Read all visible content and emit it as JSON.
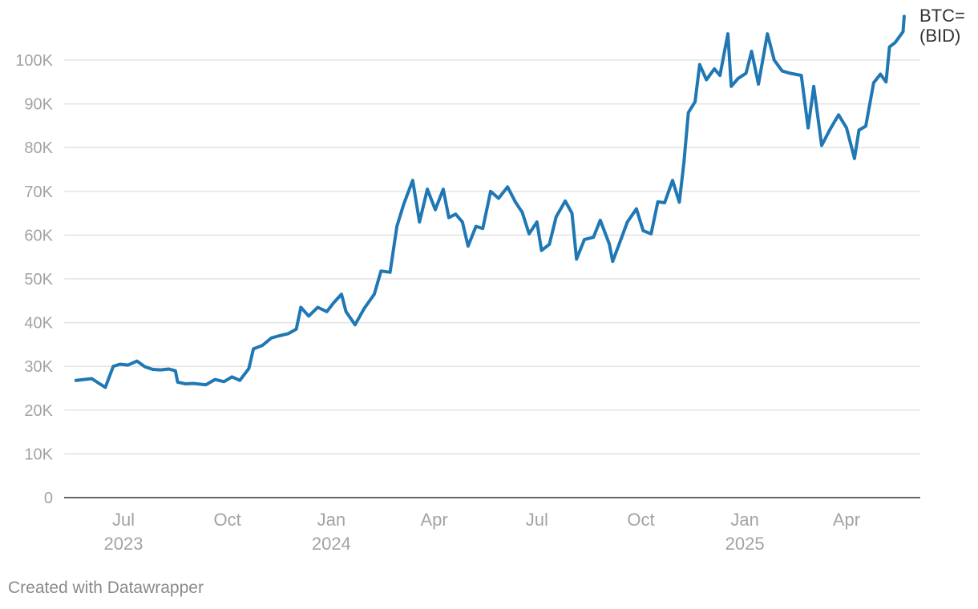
{
  "credit": "Created with Datawrapper",
  "colors": {
    "line": "#1f77b4",
    "grid": "#e3e3e3",
    "axis": "#333333",
    "tick_text": "#a3a3a3"
  },
  "chart_data": {
    "type": "line",
    "title": "",
    "xlabel": "",
    "ylabel": "",
    "ylim": [
      0,
      110000
    ],
    "xlim": [
      "2023-05-15",
      "2025-06-03"
    ],
    "grid": true,
    "yticks": [
      {
        "value": 0,
        "label": "0"
      },
      {
        "value": 10000,
        "label": "10K"
      },
      {
        "value": 20000,
        "label": "20K"
      },
      {
        "value": 30000,
        "label": "30K"
      },
      {
        "value": 40000,
        "label": "40K"
      },
      {
        "value": 50000,
        "label": "50K"
      },
      {
        "value": 60000,
        "label": "60K"
      },
      {
        "value": 70000,
        "label": "70K"
      },
      {
        "value": 80000,
        "label": "80K"
      },
      {
        "value": 90000,
        "label": "90K"
      },
      {
        "value": 100000,
        "label": "100K"
      }
    ],
    "xticks": [
      {
        "date": "2023-07-01",
        "label": "Jul",
        "year": "2023"
      },
      {
        "date": "2023-10-01",
        "label": "Oct",
        "year": ""
      },
      {
        "date": "2024-01-01",
        "label": "Jan",
        "year": "2024"
      },
      {
        "date": "2024-04-01",
        "label": "Apr",
        "year": ""
      },
      {
        "date": "2024-07-01",
        "label": "Jul",
        "year": ""
      },
      {
        "date": "2024-10-01",
        "label": "Oct",
        "year": ""
      },
      {
        "date": "2025-01-01",
        "label": "Jan",
        "year": "2025"
      },
      {
        "date": "2025-04-01",
        "label": "Apr",
        "year": ""
      }
    ],
    "series": [
      {
        "name_lines": [
          "BTC=",
          "(BID)"
        ],
        "points": [
          [
            "2023-05-20",
            26800
          ],
          [
            "2023-05-27",
            27000
          ],
          [
            "2023-06-03",
            27200
          ],
          [
            "2023-06-10",
            26000
          ],
          [
            "2023-06-15",
            25200
          ],
          [
            "2023-06-22",
            30000
          ],
          [
            "2023-06-28",
            30500
          ],
          [
            "2023-07-05",
            30300
          ],
          [
            "2023-07-13",
            31200
          ],
          [
            "2023-07-20",
            29900
          ],
          [
            "2023-07-27",
            29300
          ],
          [
            "2023-08-03",
            29200
          ],
          [
            "2023-08-10",
            29400
          ],
          [
            "2023-08-16",
            29000
          ],
          [
            "2023-08-18",
            26400
          ],
          [
            "2023-08-25",
            26000
          ],
          [
            "2023-09-01",
            26100
          ],
          [
            "2023-09-08",
            25900
          ],
          [
            "2023-09-12",
            25800
          ],
          [
            "2023-09-20",
            27000
          ],
          [
            "2023-09-28",
            26500
          ],
          [
            "2023-10-05",
            27600
          ],
          [
            "2023-10-12",
            26800
          ],
          [
            "2023-10-20",
            29500
          ],
          [
            "2023-10-24",
            34000
          ],
          [
            "2023-11-01",
            34800
          ],
          [
            "2023-11-09",
            36500
          ],
          [
            "2023-11-16",
            37000
          ],
          [
            "2023-11-24",
            37500
          ],
          [
            "2023-12-01",
            38500
          ],
          [
            "2023-12-05",
            43500
          ],
          [
            "2023-12-12",
            41500
          ],
          [
            "2023-12-20",
            43500
          ],
          [
            "2023-12-28",
            42500
          ],
          [
            "2024-01-03",
            44500
          ],
          [
            "2024-01-10",
            46500
          ],
          [
            "2024-01-14",
            42500
          ],
          [
            "2024-01-22",
            39500
          ],
          [
            "2024-01-30",
            43200
          ],
          [
            "2024-02-08",
            46500
          ],
          [
            "2024-02-14",
            51800
          ],
          [
            "2024-02-22",
            51500
          ],
          [
            "2024-02-28",
            62000
          ],
          [
            "2024-03-05",
            67000
          ],
          [
            "2024-03-13",
            72500
          ],
          [
            "2024-03-19",
            63000
          ],
          [
            "2024-03-26",
            70500
          ],
          [
            "2024-04-02",
            65800
          ],
          [
            "2024-04-09",
            70500
          ],
          [
            "2024-04-14",
            64000
          ],
          [
            "2024-04-20",
            64800
          ],
          [
            "2024-04-26",
            63000
          ],
          [
            "2024-05-01",
            57500
          ],
          [
            "2024-05-08",
            62000
          ],
          [
            "2024-05-14",
            61500
          ],
          [
            "2024-05-21",
            70000
          ],
          [
            "2024-05-28",
            68400
          ],
          [
            "2024-06-05",
            71000
          ],
          [
            "2024-06-12",
            67500
          ],
          [
            "2024-06-18",
            65200
          ],
          [
            "2024-06-24",
            60300
          ],
          [
            "2024-07-01",
            63000
          ],
          [
            "2024-07-05",
            56500
          ],
          [
            "2024-07-12",
            57900
          ],
          [
            "2024-07-18",
            64200
          ],
          [
            "2024-07-26",
            67800
          ],
          [
            "2024-08-01",
            65000
          ],
          [
            "2024-08-05",
            54500
          ],
          [
            "2024-08-12",
            59000
          ],
          [
            "2024-08-20",
            59500
          ],
          [
            "2024-08-26",
            63400
          ],
          [
            "2024-09-03",
            58000
          ],
          [
            "2024-09-06",
            54000
          ],
          [
            "2024-09-12",
            58100
          ],
          [
            "2024-09-19",
            63000
          ],
          [
            "2024-09-27",
            66000
          ],
          [
            "2024-10-03",
            61000
          ],
          [
            "2024-10-10",
            60300
          ],
          [
            "2024-10-16",
            67600
          ],
          [
            "2024-10-22",
            67400
          ],
          [
            "2024-10-29",
            72500
          ],
          [
            "2024-11-04",
            67500
          ],
          [
            "2024-11-08",
            76500
          ],
          [
            "2024-11-12",
            88000
          ],
          [
            "2024-11-18",
            90500
          ],
          [
            "2024-11-22",
            99000
          ],
          [
            "2024-11-28",
            95500
          ],
          [
            "2024-12-05",
            98000
          ],
          [
            "2024-12-10",
            96500
          ],
          [
            "2024-12-17",
            106000
          ],
          [
            "2024-12-20",
            94000
          ],
          [
            "2024-12-26",
            95800
          ],
          [
            "2025-01-02",
            97000
          ],
          [
            "2025-01-07",
            102000
          ],
          [
            "2025-01-13",
            94500
          ],
          [
            "2025-01-21",
            106000
          ],
          [
            "2025-01-27",
            100000
          ],
          [
            "2025-02-03",
            97500
          ],
          [
            "2025-02-10",
            97000
          ],
          [
            "2025-02-20",
            96500
          ],
          [
            "2025-02-26",
            84500
          ],
          [
            "2025-03-03",
            94000
          ],
          [
            "2025-03-10",
            80500
          ],
          [
            "2025-03-17",
            84000
          ],
          [
            "2025-03-25",
            87500
          ],
          [
            "2025-04-01",
            84500
          ],
          [
            "2025-04-08",
            77500
          ],
          [
            "2025-04-12",
            84000
          ],
          [
            "2025-04-18",
            84900
          ],
          [
            "2025-04-25",
            94800
          ],
          [
            "2025-05-01",
            96800
          ],
          [
            "2025-05-06",
            95000
          ],
          [
            "2025-05-09",
            103000
          ],
          [
            "2025-05-14",
            104000
          ],
          [
            "2025-05-21",
            106500
          ],
          [
            "2025-05-22",
            110000
          ]
        ]
      }
    ]
  }
}
